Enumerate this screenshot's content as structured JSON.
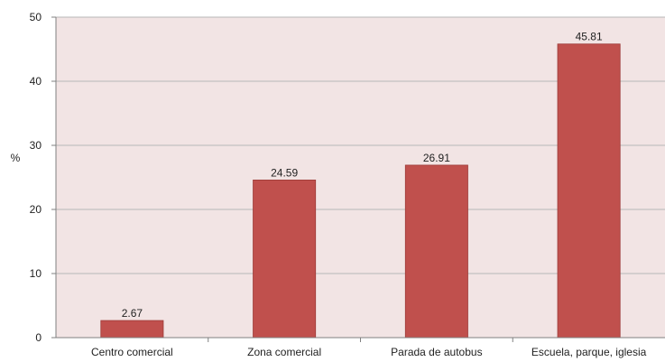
{
  "chart_data": {
    "type": "bar",
    "categories": [
      "Centro comercial",
      "Zona comercial",
      "Parada de autobus",
      "Escuela, parque, iglesia"
    ],
    "values": [
      2.67,
      24.59,
      26.91,
      45.81
    ],
    "data_labels": [
      "2.67",
      "24.59",
      "26.91",
      "45.81"
    ],
    "title": "",
    "xlabel": "",
    "ylabel": "%",
    "ylim": [
      0,
      50
    ],
    "yticks": [
      "0",
      "10",
      "20",
      "30",
      "40",
      "50"
    ],
    "grid": true,
    "legend": "none",
    "colors": {
      "plot_background": "#f2e4e4",
      "bar": "#c0504d",
      "bar_edge": "#9c3a37",
      "gridline": "#b7b7b7",
      "axis": "#808080"
    }
  }
}
